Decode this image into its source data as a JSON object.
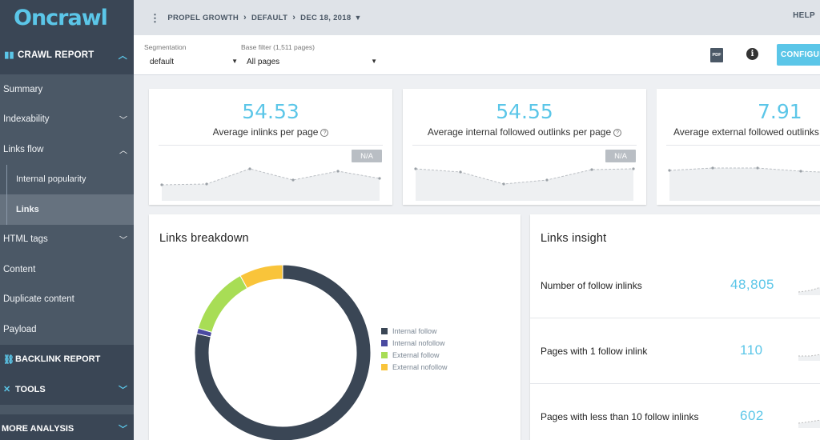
{
  "brand": {
    "logo_text": "Oncrawl",
    "accent": "#5bc6e8"
  },
  "sidebar": {
    "crawl_report": "CRAWL REPORT",
    "items": [
      {
        "label": "Summary"
      },
      {
        "label": "Indexability"
      },
      {
        "label": "Links flow"
      },
      {
        "label": "Internal popularity"
      },
      {
        "label": "Links"
      },
      {
        "label": "HTML tags"
      },
      {
        "label": "Content"
      },
      {
        "label": "Duplicate content"
      },
      {
        "label": "Payload"
      }
    ],
    "backlink_report": "BACKLINK REPORT",
    "tools": "TOOLS",
    "more_analysis": "MORE ANALYSIS"
  },
  "topbar": {
    "breadcrumb": [
      "PROPEL GROWTH",
      "DEFAULT",
      "DEC 18, 2018"
    ],
    "help": "HELP"
  },
  "filters": {
    "segmentation_label": "Segmentation",
    "segmentation_value": "default",
    "base_filter_label": "Base filter (1,511 pages)",
    "base_filter_value": "All pages",
    "pdf_icon_text": "PDF",
    "configure_label": "CONFIGURE"
  },
  "metrics": [
    {
      "value": "54.53",
      "label": "Average inlinks per page",
      "badge": "N/A"
    },
    {
      "value": "54.55",
      "label": "Average internal followed outlinks per page",
      "badge": "N/A"
    },
    {
      "value": "7.91",
      "label": "Average external followed outlinks per page"
    }
  ],
  "links_breakdown": {
    "title": "Links breakdown",
    "chart_data": {
      "type": "pie",
      "categories": [
        "Internal follow",
        "Internal nofollow",
        "External follow",
        "External nofollow"
      ],
      "values": [
        78.5,
        1,
        12.5,
        8
      ],
      "colors": [
        "#3a4655",
        "#4a4aa0",
        "#a8dd55",
        "#f9c43a"
      ],
      "legend": "right"
    }
  },
  "links_insight": {
    "title": "Links insight",
    "rows": [
      {
        "label": "Number of follow inlinks",
        "value": "48,805"
      },
      {
        "label": "Pages with 1 follow inlink",
        "value": "110"
      },
      {
        "label": "Pages with less than 10 follow inlinks",
        "value": "602"
      }
    ]
  }
}
